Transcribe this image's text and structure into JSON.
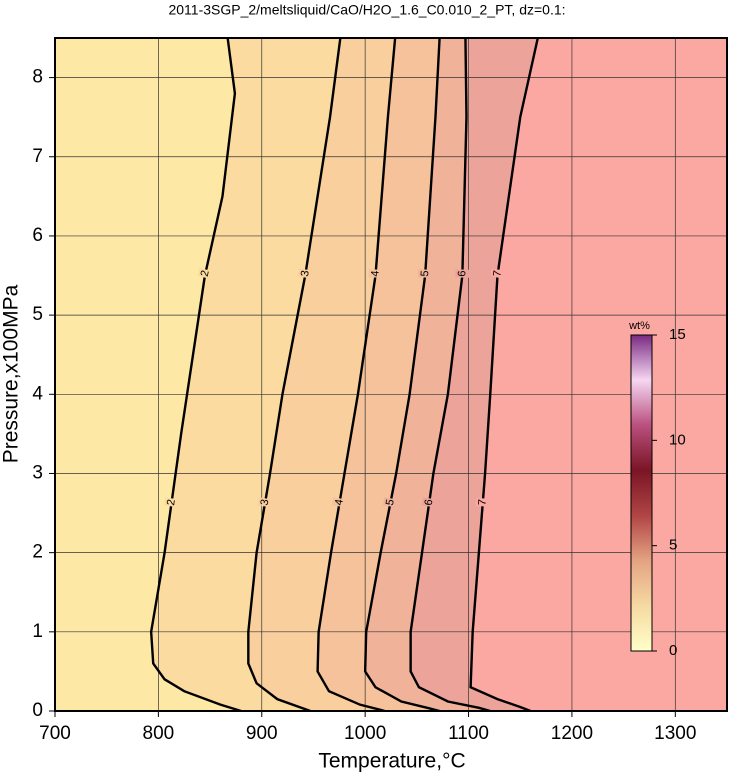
{
  "chart_data": {
    "type": "contour",
    "title": "2011-3SGP_2/meltsliquid/CaO/H2O_1.6_C0.010_2_PT, dz=0.1:",
    "xlabel": "Temperature,°C",
    "ylabel": "Pressure,x100MPa",
    "xlim": [
      700,
      1350
    ],
    "ylim": [
      0,
      8.5
    ],
    "xticks": [
      700,
      800,
      900,
      1000,
      1100,
      1200,
      1300
    ],
    "yticks": [
      0,
      1,
      2,
      3,
      4,
      5,
      6,
      7,
      8
    ],
    "grid": true,
    "background": "#fde8a6",
    "contours": [
      {
        "level": 2,
        "fill": "#fbdba0",
        "x": [
          867,
          874,
          862,
          845,
          822,
          806,
          793,
          795,
          806,
          825,
          860,
          880
        ],
        "y": [
          8.5,
          7.8,
          6.5,
          5.5,
          3.5,
          2,
          1,
          0.6,
          0.4,
          0.25,
          0.08,
          0
        ]
      },
      {
        "level": 3,
        "fill": "#f8cf9d",
        "x": [
          976,
          966,
          942,
          920,
          908,
          895,
          887,
          887,
          895,
          915,
          947
        ],
        "y": [
          8.5,
          7.5,
          5.5,
          4,
          3,
          2,
          1,
          0.6,
          0.35,
          0.15,
          0
        ]
      },
      {
        "level": 4,
        "fill": "#f5c29b",
        "x": [
          1029,
          1022,
          1010,
          993,
          980,
          967,
          955,
          954,
          965,
          995,
          1019
        ],
        "y": [
          8.5,
          7.5,
          5.5,
          4,
          3,
          2,
          1,
          0.5,
          0.25,
          0.08,
          0
        ]
      },
      {
        "level": 5,
        "fill": "#f0b39a",
        "x": [
          1072,
          1068,
          1058,
          1043,
          1030,
          1015,
          1001,
          1000,
          1010,
          1035,
          1060,
          1072
        ],
        "y": [
          8.5,
          7.5,
          5.5,
          4,
          3,
          2,
          1,
          0.5,
          0.3,
          0.12,
          0.04,
          0
        ]
      },
      {
        "level": 6,
        "fill": "#eba39a",
        "x": [
          1097,
          1098,
          1094,
          1080,
          1066,
          1055,
          1044,
          1044,
          1052,
          1080,
          1110,
          1121
        ],
        "y": [
          8.5,
          7.5,
          5.5,
          4,
          3,
          2,
          1,
          0.5,
          0.3,
          0.12,
          0.04,
          0
        ]
      },
      {
        "level": 7,
        "fill": "#faa8a1",
        "x": [
          1167,
          1150,
          1128,
          1121,
          1116,
          1110,
          1104,
          1102,
          1128,
          1150,
          1160
        ],
        "y": [
          8.5,
          7.5,
          5.5,
          4,
          3,
          2,
          1,
          0.3,
          0.15,
          0.05,
          0
        ]
      }
    ],
    "colorbar": {
      "label": "wt%",
      "lim": [
        0,
        15
      ],
      "ticks": [
        0,
        5,
        10,
        15
      ],
      "colormap": [
        "#ffffc8",
        "#f6d9a2",
        "#e4a383",
        "#b04545",
        "#7a1525",
        "#b9507e",
        "#f6d6f2",
        "#7a2a82"
      ]
    }
  }
}
